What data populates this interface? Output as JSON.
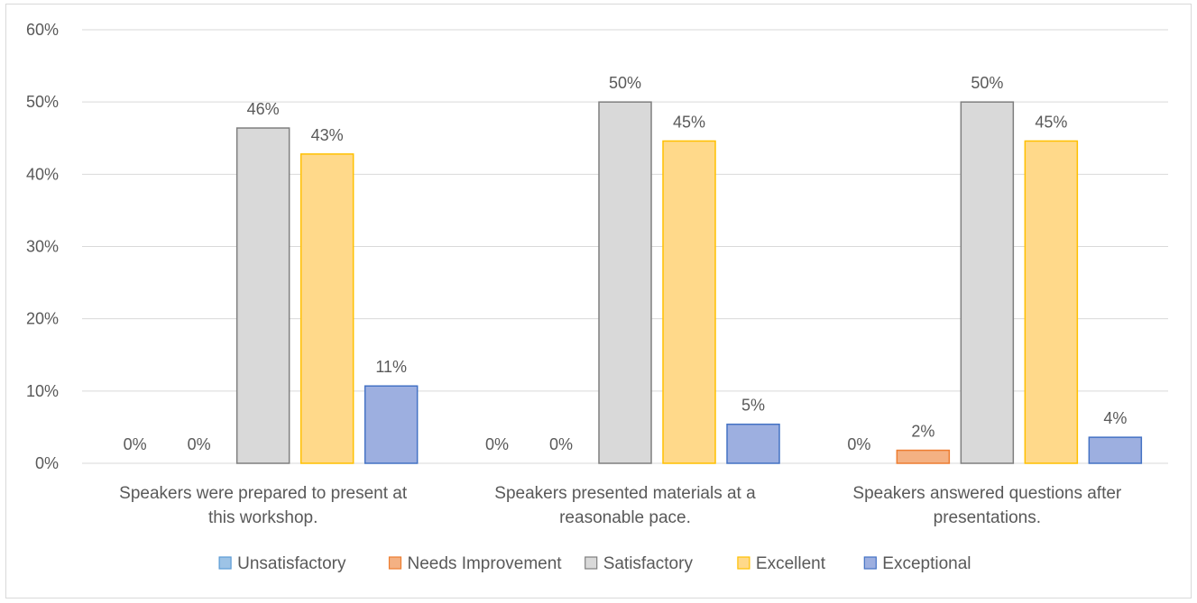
{
  "chart_data": {
    "type": "bar",
    "title": "",
    "xlabel": "",
    "ylabel": "",
    "ylim": [
      0,
      0.6
    ],
    "y_ticks": [
      "0%",
      "10%",
      "20%",
      "30%",
      "40%",
      "50%",
      "60%"
    ],
    "grid": true,
    "legend_position": "bottom",
    "categories": [
      [
        "Speakers were prepared to present at",
        "this workshop."
      ],
      [
        "Speakers presented materials at a",
        "reasonable pace."
      ],
      [
        "Speakers answered questions after",
        "presentations."
      ]
    ],
    "series": [
      {
        "name": "Unsatisfactory",
        "fill": "#9dc3e6",
        "stroke": "#5b9bd5",
        "values": [
          0,
          0,
          0
        ],
        "labels": [
          "0%",
          "0%",
          "0%"
        ]
      },
      {
        "name": "Needs Improvement",
        "fill": "#f4b183",
        "stroke": "#ed7d31",
        "values": [
          0,
          0,
          0.018
        ],
        "labels": [
          "0%",
          "0%",
          "2%"
        ]
      },
      {
        "name": "Satisfactory",
        "fill": "#d9d9d9",
        "stroke": "#7f7f7f",
        "values": [
          0.464,
          0.5,
          0.5
        ],
        "labels": [
          "46%",
          "50%",
          "50%"
        ]
      },
      {
        "name": "Excellent",
        "fill": "#ffd98a",
        "stroke": "#ffc000",
        "values": [
          0.428,
          0.446,
          0.446
        ],
        "labels": [
          "43%",
          "45%",
          "45%"
        ]
      },
      {
        "name": "Exceptional",
        "fill": "#9dafe0",
        "stroke": "#4472c4",
        "values": [
          0.107,
          0.054,
          0.036
        ],
        "labels": [
          "11%",
          "5%",
          "4%"
        ]
      }
    ]
  }
}
